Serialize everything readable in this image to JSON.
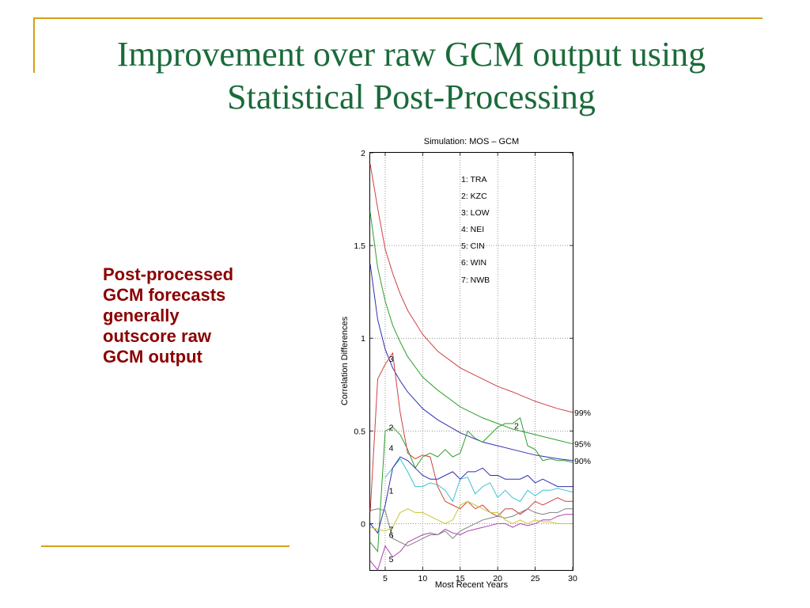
{
  "slide": {
    "title_line1": "Improvement over raw GCM output using",
    "title_line2": "Statistical Post-Processing",
    "body_lines": [
      "Post-processed",
      "GCM forecasts",
      "generally",
      "outscore raw",
      "GCM output"
    ],
    "title_color": "#1a6b3a",
    "body_color": "#8b0000",
    "accent_color": "#d4a017"
  },
  "chart_data": {
    "type": "line",
    "title": "Simulation: MOS – GCM",
    "xlabel": "Most Recent Years",
    "ylabel": "Correlation Differences",
    "xlim": [
      3,
      30
    ],
    "ylim": [
      -0.25,
      2
    ],
    "xticks": [
      5,
      10,
      15,
      20,
      25,
      30
    ],
    "yticks": [
      0,
      0.5,
      1,
      1.5,
      2
    ],
    "ytick_labels": [
      "0",
      "0.5",
      "1",
      "1.5",
      "2"
    ],
    "grid": true,
    "legend_position": "top-center",
    "legend": [
      "1: TRA",
      "2: KZC",
      "3: LOW",
      "4: NEI",
      "5: CIN",
      "6: WIN",
      "7: NWB"
    ],
    "significance_curves": [
      {
        "label": "99%",
        "color": "#d04040",
        "x": [
          3,
          4,
          5,
          6,
          7,
          8,
          10,
          12,
          15,
          18,
          20,
          22,
          25,
          28,
          30
        ],
        "y": [
          1.94,
          1.7,
          1.48,
          1.35,
          1.24,
          1.15,
          1.02,
          0.93,
          0.84,
          0.78,
          0.74,
          0.71,
          0.66,
          0.62,
          0.6
        ]
      },
      {
        "label": "95%",
        "color": "#2e9e2e",
        "x": [
          3,
          4,
          5,
          6,
          7,
          8,
          10,
          12,
          15,
          18,
          20,
          22,
          25,
          28,
          30
        ],
        "y": [
          1.68,
          1.38,
          1.2,
          1.07,
          0.98,
          0.9,
          0.79,
          0.72,
          0.63,
          0.57,
          0.54,
          0.51,
          0.48,
          0.45,
          0.43
        ]
      },
      {
        "label": "90%",
        "color": "#3030b0",
        "x": [
          3,
          4,
          5,
          6,
          7,
          8,
          10,
          12,
          15,
          18,
          20,
          22,
          25,
          28,
          30
        ],
        "y": [
          1.4,
          1.1,
          0.94,
          0.84,
          0.77,
          0.71,
          0.62,
          0.56,
          0.49,
          0.44,
          0.42,
          0.4,
          0.37,
          0.35,
          0.34
        ]
      }
    ],
    "series": [
      {
        "name": "1",
        "color": "#40c0d0",
        "x": [
          5,
          6,
          7,
          8,
          9,
          10,
          11,
          12,
          13,
          14,
          15,
          16,
          17,
          18,
          19,
          20,
          21,
          22,
          23,
          24,
          25,
          26,
          27,
          28,
          29,
          30
        ],
        "y": [
          0.25,
          0.3,
          0.35,
          0.28,
          0.2,
          0.2,
          0.22,
          0.21,
          0.18,
          0.12,
          0.24,
          0.25,
          0.16,
          0.2,
          0.22,
          0.14,
          0.18,
          0.14,
          0.12,
          0.18,
          0.15,
          0.18,
          0.18,
          0.19,
          0.18,
          0.17
        ]
      },
      {
        "name": "2",
        "color": "#2e9e2e",
        "x": [
          3,
          4,
          5,
          6,
          7,
          8,
          9,
          10,
          11,
          12,
          13,
          14,
          15,
          16,
          17,
          18,
          19,
          20,
          21,
          22,
          23,
          24,
          25,
          26,
          27,
          28,
          29,
          30
        ],
        "y": [
          -0.1,
          -0.15,
          0.5,
          0.52,
          0.48,
          0.4,
          0.3,
          0.36,
          0.38,
          0.36,
          0.4,
          0.36,
          0.38,
          0.5,
          0.46,
          0.44,
          0.48,
          0.52,
          0.54,
          0.54,
          0.57,
          0.42,
          0.4,
          0.34,
          0.35,
          0.34,
          0.34,
          0.33
        ]
      },
      {
        "name": "3",
        "color": "#d04040",
        "x": [
          3,
          4,
          5,
          6,
          7,
          8,
          9,
          10,
          11,
          12,
          13,
          14,
          15,
          16,
          17,
          18,
          19,
          20,
          21,
          22,
          23,
          24,
          25,
          26,
          27,
          28,
          29,
          30
        ],
        "y": [
          0.06,
          0.78,
          0.86,
          0.92,
          0.6,
          0.38,
          0.35,
          0.37,
          0.36,
          0.2,
          0.12,
          0.1,
          0.08,
          0.12,
          0.08,
          0.1,
          0.06,
          0.04,
          0.08,
          0.08,
          0.05,
          0.08,
          0.12,
          0.1,
          0.12,
          0.14,
          0.12,
          0.12
        ]
      },
      {
        "name": "4",
        "color": "#3030b0",
        "x": [
          3,
          4,
          5,
          6,
          7,
          8,
          9,
          10,
          11,
          12,
          13,
          14,
          15,
          16,
          17,
          18,
          19,
          20,
          21,
          22,
          23,
          24,
          25,
          26,
          27,
          28,
          29,
          30
        ],
        "y": [
          0.0,
          -0.05,
          0.1,
          0.3,
          0.36,
          0.34,
          0.3,
          0.26,
          0.24,
          0.24,
          0.26,
          0.28,
          0.24,
          0.28,
          0.28,
          0.3,
          0.26,
          0.26,
          0.24,
          0.24,
          0.24,
          0.26,
          0.22,
          0.24,
          0.22,
          0.2,
          0.2,
          0.2
        ]
      },
      {
        "name": "5",
        "color": "#b040b0",
        "x": [
          3,
          4,
          5,
          6,
          7,
          8,
          9,
          10,
          11,
          12,
          13,
          14,
          15,
          16,
          17,
          18,
          19,
          20,
          21,
          22,
          23,
          24,
          25,
          26,
          27,
          28,
          29,
          30
        ],
        "y": [
          -0.2,
          -0.25,
          -0.12,
          -0.18,
          -0.15,
          -0.1,
          -0.08,
          -0.06,
          -0.05,
          -0.06,
          -0.03,
          -0.05,
          -0.06,
          -0.04,
          -0.03,
          -0.02,
          -0.01,
          0.0,
          0.0,
          -0.02,
          0.0,
          -0.01,
          0.0,
          0.02,
          0.02,
          0.04,
          0.05,
          0.05
        ]
      },
      {
        "name": "6",
        "color": "#808080",
        "x": [
          3,
          4,
          5,
          6,
          7,
          8,
          9,
          10,
          11,
          12,
          13,
          14,
          15,
          16,
          17,
          18,
          19,
          20,
          21,
          22,
          23,
          24,
          25,
          26,
          27,
          28,
          29,
          30
        ],
        "y": [
          0.07,
          0.08,
          0.07,
          -0.08,
          -0.1,
          -0.12,
          -0.1,
          -0.08,
          -0.06,
          -0.06,
          -0.04,
          -0.08,
          -0.04,
          -0.02,
          0.0,
          0.02,
          0.03,
          0.04,
          0.03,
          0.04,
          0.06,
          0.08,
          0.06,
          0.05,
          0.06,
          0.06,
          0.08,
          0.08
        ]
      },
      {
        "name": "7",
        "color": "#c8c830",
        "x": [
          3,
          4,
          5,
          6,
          7,
          8,
          9,
          10,
          11,
          12,
          13,
          14,
          15,
          16,
          17,
          18,
          19,
          20,
          21,
          22,
          23,
          24,
          25,
          26,
          27,
          28,
          29,
          30
        ],
        "y": [
          -0.02,
          -0.03,
          -0.04,
          -0.02,
          0.06,
          0.08,
          0.06,
          0.06,
          0.04,
          0.02,
          0.0,
          0.02,
          0.1,
          0.12,
          0.1,
          0.08,
          0.06,
          0.06,
          0.02,
          0.0,
          0.02,
          0.0,
          0.02,
          0.01,
          0.01,
          0.0,
          0.0,
          0.0
        ]
      }
    ],
    "curve_labels": [
      {
        "text": "3",
        "x": 5.8,
        "y": 0.89,
        "align": "middle"
      },
      {
        "text": "2",
        "x": 5.8,
        "y": 0.52,
        "align": "middle"
      },
      {
        "text": "4",
        "x": 5.8,
        "y": 0.41,
        "align": "middle"
      },
      {
        "text": "1",
        "x": 5.8,
        "y": 0.18,
        "align": "middle"
      },
      {
        "text": "7",
        "x": 5.8,
        "y": -0.03,
        "align": "middle"
      },
      {
        "text": "6",
        "x": 5.8,
        "y": -0.06,
        "align": "middle"
      },
      {
        "text": "5",
        "x": 5.8,
        "y": -0.19,
        "align": "middle"
      },
      {
        "text": "2",
        "x": 22.5,
        "y": 0.53,
        "align": "middle"
      }
    ]
  }
}
